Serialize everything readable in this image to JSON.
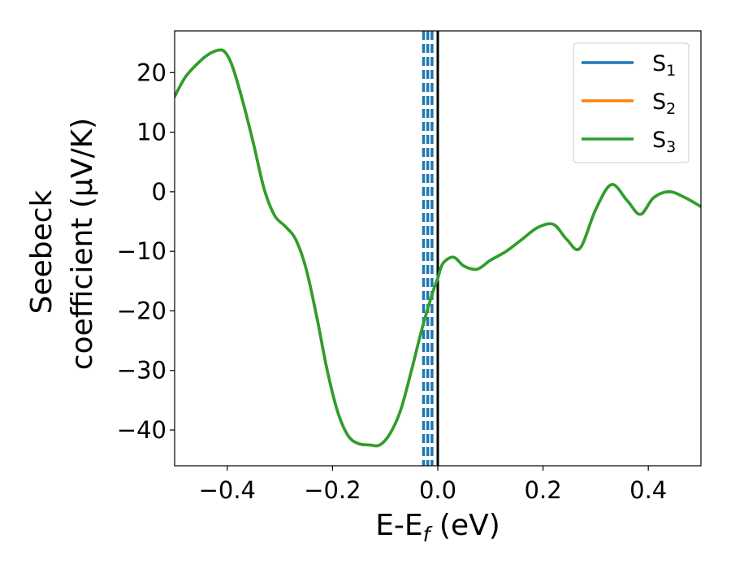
{
  "chart_data": {
    "type": "line",
    "xlabel": {
      "main": "E-E",
      "sub": "f",
      "unit": " (eV)"
    },
    "ylabel": {
      "line1": "Seebeck",
      "line2": "coefficient  (μV/K)"
    },
    "xlim": [
      -0.5,
      0.5
    ],
    "ylim": [
      -46,
      27
    ],
    "xticks": [
      -0.4,
      -0.2,
      0.0,
      0.2,
      0.4
    ],
    "xtick_labels": [
      "−0.4",
      "−0.2",
      "0.0",
      "0.2",
      "0.4"
    ],
    "yticks": [
      20,
      10,
      0,
      -10,
      -20,
      -30,
      -40
    ],
    "ytick_labels": [
      "20",
      "10",
      "0",
      "−10",
      "−20",
      "−30",
      "−40"
    ],
    "grid": false,
    "legend_position": "top-right",
    "series": [
      {
        "name": "S",
        "sub": "1",
        "color": "#1f77b4",
        "x": [
          -0.5,
          -0.48,
          -0.46,
          -0.44,
          -0.42,
          -0.405,
          -0.39,
          -0.37,
          -0.35,
          -0.33,
          -0.31,
          -0.29,
          -0.27,
          -0.25,
          -0.23,
          -0.21,
          -0.19,
          -0.17,
          -0.15,
          -0.13,
          -0.11,
          -0.09,
          -0.07,
          -0.05,
          -0.03,
          -0.01,
          0.0,
          0.01,
          0.03,
          0.05,
          0.075,
          0.1,
          0.13,
          0.16,
          0.19,
          0.22,
          0.245,
          0.27,
          0.3,
          0.33,
          0.36,
          0.385,
          0.41,
          0.44,
          0.47,
          0.5
        ],
        "y": [
          16,
          19.2,
          21.2,
          22.8,
          23.7,
          23.5,
          21.0,
          15.0,
          8.0,
          0.5,
          -4.0,
          -5.8,
          -8.0,
          -13.0,
          -21.0,
          -30.0,
          -37.0,
          -41.0,
          -42.3,
          -42.5,
          -42.5,
          -40.5,
          -36.5,
          -30.0,
          -23.0,
          -17.0,
          -14.5,
          -12.0,
          -11.0,
          -12.5,
          -13.0,
          -11.5,
          -10.0,
          -8.0,
          -6.0,
          -5.5,
          -8.0,
          -9.5,
          -3.0,
          1.2,
          -1.5,
          -3.8,
          -1.0,
          0.0,
          -1.0,
          -2.5
        ]
      },
      {
        "name": "S",
        "sub": "2",
        "color": "#ff7f0e",
        "x": [
          -0.5,
          -0.48,
          -0.46,
          -0.44,
          -0.42,
          -0.405,
          -0.39,
          -0.37,
          -0.35,
          -0.33,
          -0.31,
          -0.29,
          -0.27,
          -0.25,
          -0.23,
          -0.21,
          -0.19,
          -0.17,
          -0.15,
          -0.13,
          -0.11,
          -0.09,
          -0.07,
          -0.05,
          -0.03,
          -0.01,
          0.0,
          0.01,
          0.03,
          0.05,
          0.075,
          0.1,
          0.13,
          0.16,
          0.19,
          0.22,
          0.245,
          0.27,
          0.3,
          0.33,
          0.36,
          0.385,
          0.41,
          0.44,
          0.47,
          0.5
        ],
        "y": [
          16,
          19.2,
          21.2,
          22.8,
          23.7,
          23.5,
          21.0,
          15.0,
          8.0,
          0.5,
          -4.0,
          -5.8,
          -8.0,
          -13.0,
          -21.0,
          -30.0,
          -37.0,
          -41.0,
          -42.3,
          -42.5,
          -42.5,
          -40.5,
          -36.5,
          -30.0,
          -23.0,
          -17.0,
          -14.5,
          -12.0,
          -11.0,
          -12.5,
          -13.0,
          -11.5,
          -10.0,
          -8.0,
          -6.0,
          -5.5,
          -8.0,
          -9.5,
          -3.0,
          1.2,
          -1.5,
          -3.8,
          -1.0,
          0.0,
          -1.0,
          -2.5
        ]
      },
      {
        "name": "S",
        "sub": "3",
        "color": "#2ca02c",
        "x": [
          -0.5,
          -0.48,
          -0.46,
          -0.44,
          -0.42,
          -0.405,
          -0.39,
          -0.37,
          -0.35,
          -0.33,
          -0.31,
          -0.29,
          -0.27,
          -0.25,
          -0.23,
          -0.21,
          -0.19,
          -0.17,
          -0.15,
          -0.13,
          -0.11,
          -0.09,
          -0.07,
          -0.05,
          -0.03,
          -0.01,
          0.0,
          0.01,
          0.03,
          0.05,
          0.075,
          0.1,
          0.13,
          0.16,
          0.19,
          0.22,
          0.245,
          0.27,
          0.3,
          0.33,
          0.36,
          0.385,
          0.41,
          0.44,
          0.47,
          0.5
        ],
        "y": [
          16,
          19.2,
          21.2,
          22.8,
          23.7,
          23.5,
          21.0,
          15.0,
          8.0,
          0.5,
          -4.0,
          -5.8,
          -8.0,
          -13.0,
          -21.0,
          -30.0,
          -37.0,
          -41.0,
          -42.3,
          -42.5,
          -42.5,
          -40.5,
          -36.5,
          -30.0,
          -23.0,
          -17.0,
          -14.5,
          -12.0,
          -11.0,
          -12.5,
          -13.0,
          -11.5,
          -10.0,
          -8.0,
          -6.0,
          -5.5,
          -8.0,
          -9.5,
          -3.0,
          1.2,
          -1.5,
          -3.8,
          -1.0,
          0.0,
          -1.0,
          -2.5
        ]
      }
    ],
    "vertical_lines": [
      {
        "x": -0.027,
        "style": "dashed",
        "color": "#1f77b4"
      },
      {
        "x": -0.019,
        "style": "dashed",
        "color": "#1f77b4"
      },
      {
        "x": -0.011,
        "style": "dashed",
        "color": "#1f77b4"
      },
      {
        "x": 0.0,
        "style": "solid",
        "color": "#000000"
      }
    ]
  }
}
